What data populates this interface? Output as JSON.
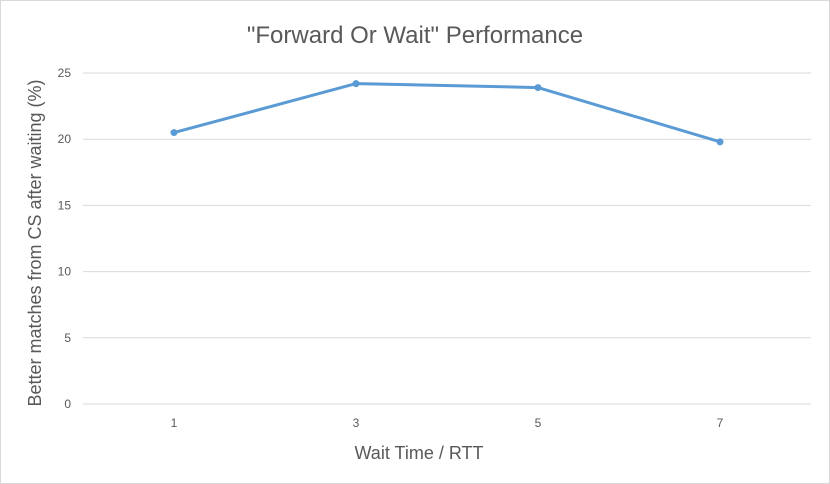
{
  "chart_data": {
    "type": "line",
    "title": "\"Forward Or Wait\" Performance",
    "xlabel": "Wait Time / RTT",
    "ylabel": "Better matches from CS after waiting (%)",
    "categories": [
      "1",
      "3",
      "5",
      "7"
    ],
    "series": [
      {
        "values": [
          20.5,
          24.2,
          23.9,
          19.8
        ]
      }
    ],
    "ylim": [
      0,
      25
    ],
    "yticks": [
      0,
      5,
      10,
      15,
      20,
      25
    ],
    "grid": true,
    "legend": "none",
    "colors": {
      "line": "#5b9bd5",
      "grid": "#d9d9d9",
      "text": "#595959"
    }
  }
}
